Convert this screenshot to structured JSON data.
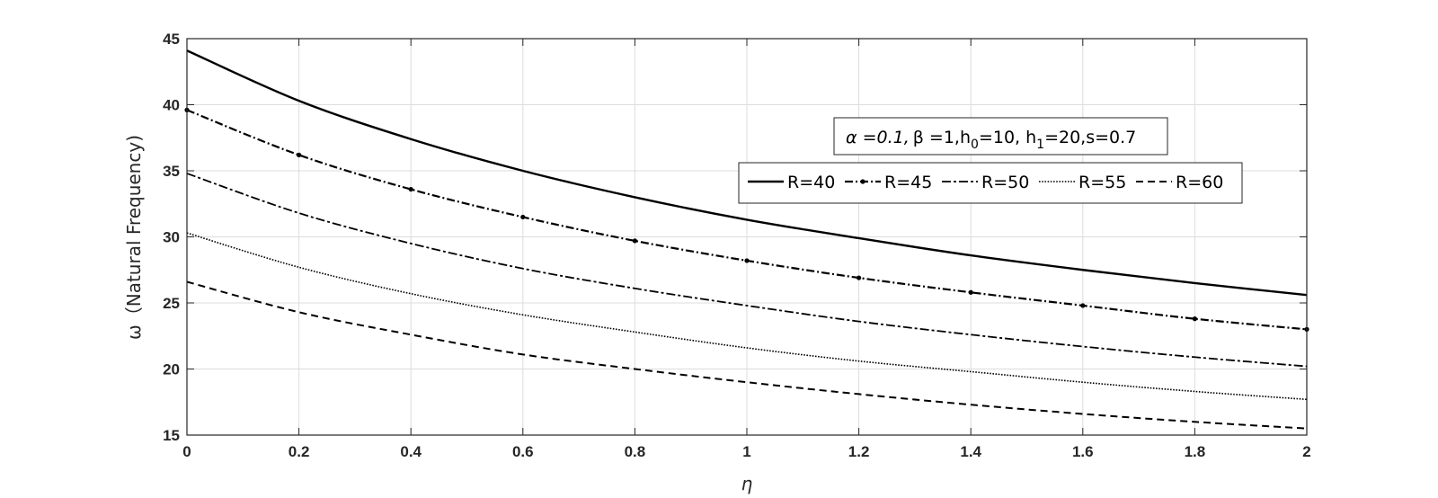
{
  "chart_data": {
    "type": "line",
    "xlabel": "η",
    "ylabel": "ω（Natural Frequency)",
    "xlim": [
      0,
      2
    ],
    "ylim": [
      15,
      45
    ],
    "xticks": [
      "0",
      "0.2",
      "0.4",
      "0.6",
      "0.8",
      "1",
      "1.2",
      "1.4",
      "1.6",
      "1.8",
      "2"
    ],
    "yticks": [
      "15",
      "20",
      "25",
      "30",
      "35",
      "40",
      "45"
    ],
    "grid": true,
    "legend_placement": "upper-right, horizontal",
    "annotation": {
      "alpha_part": "α =0.1,",
      "beta_part": "β =1,h",
      "h0_sub": "0",
      "h0_rest": "=10, h",
      "h1_sub": "1",
      "h1_rest": "=20,s=0.7"
    },
    "x": [
      0,
      0.2,
      0.4,
      0.6,
      0.8,
      1.0,
      1.2,
      1.4,
      1.6,
      1.8,
      2.0
    ],
    "series": [
      {
        "name": "R=40",
        "style": "solid",
        "values": [
          44.1,
          40.3,
          37.4,
          35.0,
          33.0,
          31.3,
          29.9,
          28.6,
          27.5,
          26.5,
          25.6
        ]
      },
      {
        "name": "R=45",
        "style": "dashdot-dots",
        "values": [
          39.6,
          36.2,
          33.6,
          31.5,
          29.7,
          28.2,
          26.9,
          25.8,
          24.8,
          23.8,
          23.0
        ]
      },
      {
        "name": "R=50",
        "style": "dashdot",
        "values": [
          34.8,
          31.8,
          29.5,
          27.6,
          26.1,
          24.8,
          23.6,
          22.6,
          21.7,
          20.9,
          20.2
        ]
      },
      {
        "name": "R=55",
        "style": "dotted",
        "values": [
          30.3,
          27.7,
          25.7,
          24.1,
          22.8,
          21.6,
          20.6,
          19.8,
          19.0,
          18.3,
          17.7
        ]
      },
      {
        "name": "R=60",
        "style": "dashed",
        "values": [
          26.6,
          24.3,
          22.6,
          21.1,
          20.0,
          19.0,
          18.1,
          17.3,
          16.6,
          16.0,
          15.5
        ]
      }
    ]
  }
}
